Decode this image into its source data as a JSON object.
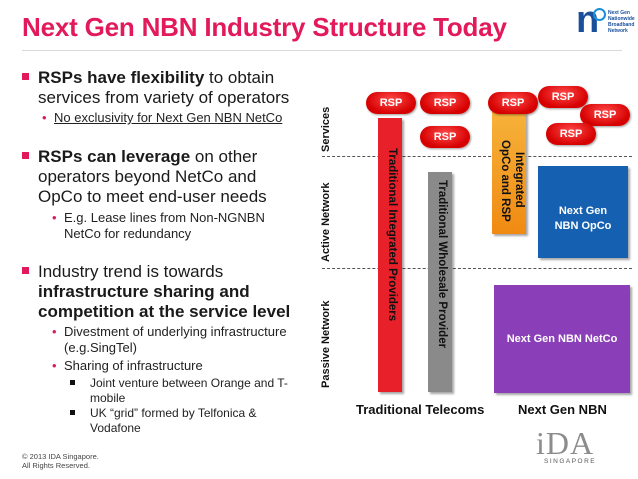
{
  "title": "Next Gen NBN Industry Structure Today",
  "logo": {
    "mark": "n",
    "line1": "Next Gen",
    "line2": "Nationwide",
    "line3": "Broadband",
    "line4": "Network"
  },
  "bullets": {
    "b1_bold": "RSPs have flexibility",
    "b1_rest_a": " to obtain",
    "b1_rest_b": "services from variety of operators",
    "b1_sub": "No exclusivity for Next Gen NBN NetCo",
    "b2_bold": "RSPs can leverage",
    "b2_rest_a": " on other",
    "b2_rest_b": "operators beyond NetCo and",
    "b2_rest_c": "OpCo to meet end-user needs",
    "b2_sub_a": "E.g. Lease lines from Non-NGNBN",
    "b2_sub_b": "NetCo for redundancy",
    "b3_a": "Industry trend is towards",
    "b3_b": "infrastructure sharing and",
    "b3_c": "competition at the service level",
    "b3_sub1": "Divestment of underlying infrastructure",
    "b3_sub1b": "(e.g.SingTel)",
    "b3_sub2": "Sharing of infrastructure",
    "b3_ss1a": "Joint venture between Orange and T-",
    "b3_ss1b": "mobile",
    "b3_ss2a": "UK “grid” formed by Telfonica &",
    "b3_ss2b": "Vodafone"
  },
  "layers": {
    "services": "Services",
    "active": "Active Network",
    "passive": "Passive Network"
  },
  "bars": {
    "integrated": "Traditional Integrated Providers",
    "wholesale": "Traditional Wholesale Provider",
    "opco_rsp_a": "Integrated",
    "opco_rsp_b": "OpCo and RSP"
  },
  "rsp_label": "RSP",
  "boxes": {
    "opco_a": "Next Gen",
    "opco_b": "NBN OpCo",
    "netco": "Next Gen NBN NetCo"
  },
  "captions": {
    "left": "Traditional Telecoms",
    "right": "Next Gen NBN"
  },
  "ida": {
    "mark": "iDA",
    "sub": "SINGAPORE"
  },
  "footer": {
    "line1": "© 2013 IDA Singapore.",
    "line2": "All Rights Reserved."
  },
  "colors": {
    "accent": "#e2195a",
    "red_bar": "#e8202a",
    "grey_bar": "#8a8a8a",
    "orange_bar": "#f39a1a",
    "blue_box": "#1560b0",
    "purple_box": "#8a3fb8"
  }
}
